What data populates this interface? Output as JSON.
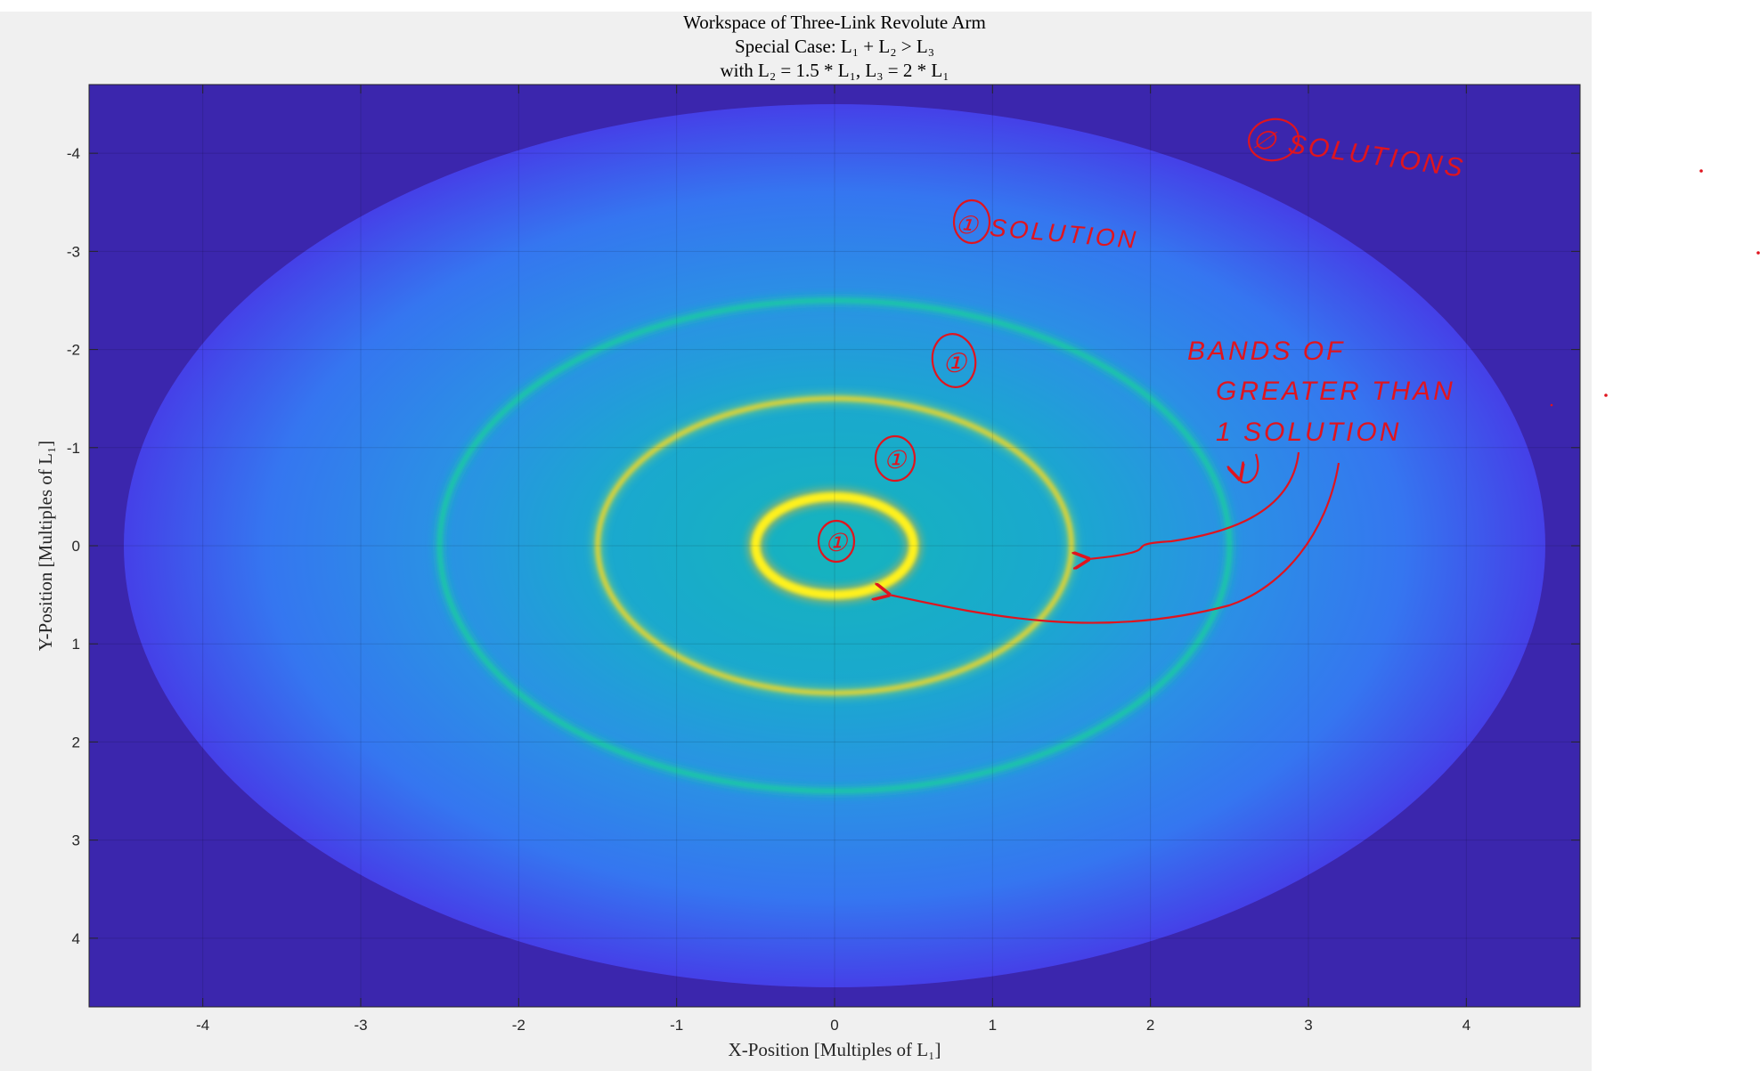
{
  "chart_data": {
    "type": "heatmap",
    "title": [
      "Workspace of Three-Link Revolute Arm",
      "Special Case: L₁ + L₂ > L₃",
      "with L₂ = 1.5 * L₁, L₃ = 2 * L₁"
    ],
    "xlabel": "X-Position [Multiples of L₁]",
    "ylabel": "Y-Position [Multiples of L₁]",
    "xlim": [
      -4.72,
      4.72
    ],
    "ylim": [
      -4.7,
      4.7
    ],
    "y_reversed": true,
    "grid": true,
    "xticks": [
      -4,
      -3,
      -2,
      -1,
      0,
      1,
      2,
      3,
      4
    ],
    "yticks": [
      -4,
      -3,
      -2,
      -1,
      0,
      1,
      2,
      3,
      4
    ],
    "workspace_outer_radius": 4.5,
    "rings": [
      {
        "radius": 0.5,
        "band": "bright yellow"
      },
      {
        "radius": 1.5,
        "band": "yellow"
      },
      {
        "radius": 2.5,
        "band": "teal"
      }
    ],
    "colors": {
      "outside": "#3b26ad",
      "edge": "#4540e8",
      "mid": "#2a98e6",
      "inner": "#15b4bd",
      "ring_teal": "#1fc8a6",
      "ring_yellow": "#d7d23a",
      "ring_bright": "#fff11d",
      "annotation": "#e0141e"
    },
    "annotations": [
      {
        "text": "∅ SOLUTIONS"
      },
      {
        "text": "① SOLUTION"
      },
      {
        "text": "①"
      },
      {
        "text": "①"
      },
      {
        "text": "①"
      },
      {
        "text": "BANDS OF"
      },
      {
        "text": "GREATER THAN"
      },
      {
        "text": "1 SOLUTION"
      }
    ]
  }
}
